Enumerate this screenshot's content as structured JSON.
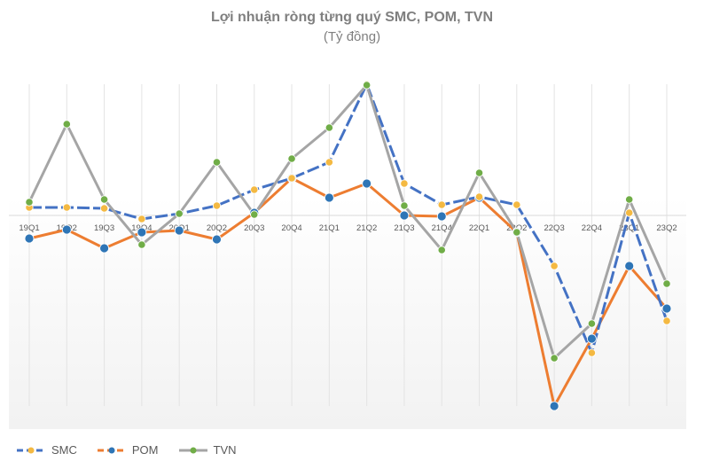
{
  "chart_data": {
    "type": "line",
    "title": "Lợi nhuận ròng từng quý SMC, POM, TVN",
    "subtitle": "(Tỷ đồng)",
    "xlabel": "",
    "ylabel": "",
    "grid": "vertical category lines only; no y-axis tick labels shown",
    "legend_position": "bottom-left",
    "categories": [
      "19Q1",
      "19Q2",
      "19Q3",
      "19Q4",
      "20Q1",
      "20Q2",
      "20Q3",
      "20Q4",
      "21Q1",
      "21Q2",
      "21Q3",
      "21Q4",
      "22Q1",
      "22Q2",
      "22Q3",
      "22Q4",
      "23Q1",
      "23Q2"
    ],
    "value_note": "No y-axis scale shown; values are relative estimates (zero line = 0, 1 unit ≈ 1 px).",
    "series": [
      {
        "name": "SMC",
        "line_color": "#4472c4",
        "marker_color": "#f4b942",
        "dashed": true,
        "values": [
          9,
          9,
          8,
          -4,
          2,
          11,
          29,
          42,
          60,
          148,
          36,
          12,
          21,
          12,
          -57,
          -155,
          3,
          -119
        ]
      },
      {
        "name": "POM",
        "line_color": "#ed7d31",
        "marker_color": "#2e75b6",
        "dashed": false,
        "values": [
          -26,
          -16,
          -37,
          -19,
          -17,
          -27,
          3,
          42,
          20,
          36,
          0,
          -1,
          20,
          -19,
          -215,
          -139,
          -57,
          -105
        ]
      },
      {
        "name": "TVN",
        "line_color": "#a5a5a5",
        "marker_color": "#70ad47",
        "dashed": false,
        "values": [
          15,
          103,
          18,
          -33,
          2,
          60,
          1,
          64,
          99,
          147,
          11,
          -39,
          48,
          -19,
          -161,
          -122,
          18,
          -77
        ]
      }
    ]
  },
  "legend": {
    "items": [
      {
        "label": "SMC"
      },
      {
        "label": "POM"
      },
      {
        "label": "TVN"
      }
    ]
  }
}
